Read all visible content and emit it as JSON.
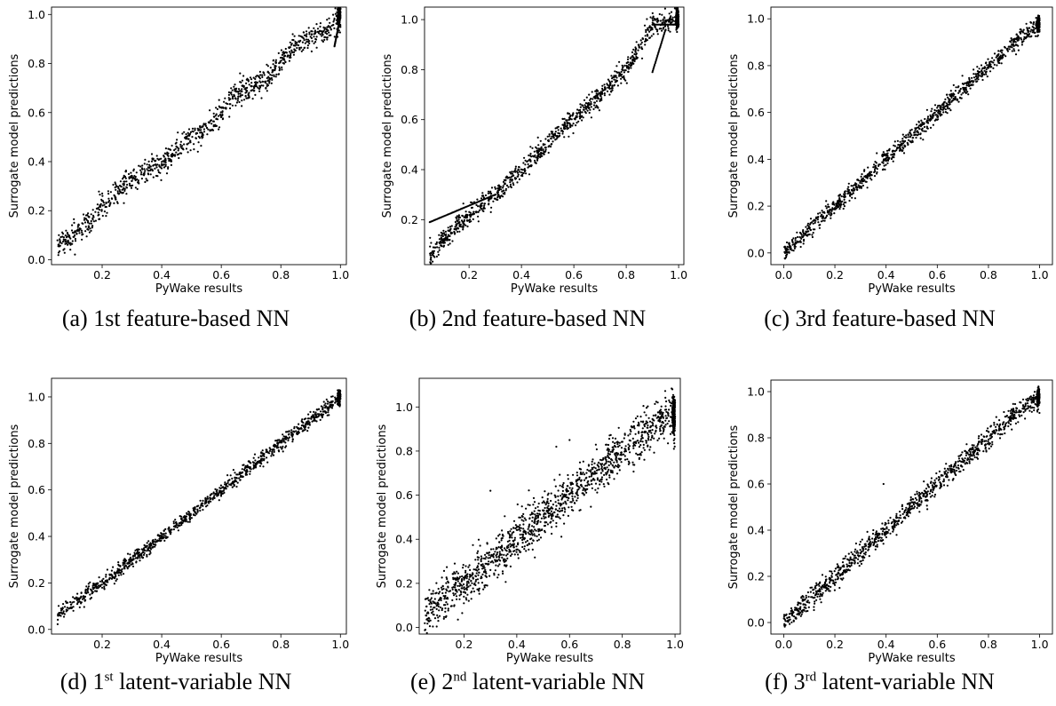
{
  "chart_data": [
    {
      "type": "scatter",
      "caption": {
        "prefix": "(a) 1st feature-based NN",
        "sup": "",
        "suffix": ""
      },
      "xlabel": "PyWake results",
      "ylabel": "Surrogate model predictions",
      "xlim": [
        0.03,
        1.02
      ],
      "ylim": [
        -0.02,
        1.03
      ],
      "xticks": [
        0.2,
        0.4,
        0.6,
        0.8,
        1.0
      ],
      "yticks": [
        0.0,
        0.2,
        0.4,
        0.6,
        0.8,
        1.0
      ],
      "approx_points": [
        [
          0.05,
          0.06
        ],
        [
          0.1,
          0.1
        ],
        [
          0.15,
          0.15
        ],
        [
          0.2,
          0.22
        ],
        [
          0.3,
          0.33
        ],
        [
          0.4,
          0.4
        ],
        [
          0.5,
          0.5
        ],
        [
          0.55,
          0.53
        ],
        [
          0.65,
          0.68
        ],
        [
          0.75,
          0.73
        ],
        [
          0.85,
          0.88
        ],
        [
          0.95,
          0.93
        ],
        [
          1.0,
          1.0
        ]
      ],
      "series": [
        {
          "values": "dense scatter along y = x with clustered streaks; noise ±0.05; tail 0.87–1.0 at x≈1.0"
        }
      ]
    },
    {
      "type": "scatter",
      "caption": {
        "prefix": "(b) 2nd feature-based NN",
        "sup": "",
        "suffix": ""
      },
      "xlabel": "PyWake results",
      "ylabel": "Surrogate model predictions",
      "xlim": [
        0.03,
        1.02
      ],
      "ylim": [
        0.02,
        1.05
      ],
      "xticks": [
        0.2,
        0.4,
        0.6,
        0.8,
        1.0
      ],
      "yticks": [
        0.2,
        0.4,
        0.6,
        0.8,
        1.0
      ],
      "approx_points": [
        [
          0.05,
          0.05
        ],
        [
          0.1,
          0.12
        ],
        [
          0.2,
          0.22
        ],
        [
          0.3,
          0.3
        ],
        [
          0.4,
          0.4
        ],
        [
          0.5,
          0.5
        ],
        [
          0.55,
          0.57
        ],
        [
          0.6,
          0.6
        ],
        [
          0.7,
          0.7
        ],
        [
          0.8,
          0.8
        ],
        [
          0.9,
          0.98
        ],
        [
          1.0,
          1.0
        ]
      ],
      "series": [
        {
          "values": "scatter along y = x with step plateaus; branch from (0.05,0.19) to (0.3,0.3); lower branch 0.8–0.9 near x≈0.92"
        }
      ]
    },
    {
      "type": "scatter",
      "caption": {
        "prefix": "(c) 3rd feature-based NN",
        "sup": "",
        "suffix": ""
      },
      "xlabel": "PyWake results",
      "ylabel": "Surrogate model predictions",
      "xlim": [
        -0.05,
        1.05
      ],
      "ylim": [
        -0.05,
        1.05
      ],
      "xticks": [
        0.0,
        0.2,
        0.4,
        0.6,
        0.8,
        1.0
      ],
      "yticks": [
        0.0,
        0.2,
        0.4,
        0.6,
        0.8,
        1.0
      ],
      "approx_points": [
        [
          0.0,
          0.0
        ],
        [
          0.1,
          0.1
        ],
        [
          0.2,
          0.2
        ],
        [
          0.3,
          0.3
        ],
        [
          0.4,
          0.4
        ],
        [
          0.5,
          0.5
        ],
        [
          0.6,
          0.6
        ],
        [
          0.7,
          0.7
        ],
        [
          0.8,
          0.8
        ],
        [
          0.9,
          0.9
        ],
        [
          1.0,
          0.98
        ]
      ],
      "series": [
        {
          "values": "tight scatter along y = x; noise ±0.03"
        }
      ]
    },
    {
      "type": "scatter",
      "caption": {
        "prefix": "(d) 1",
        "sup": "st",
        "suffix": " latent-variable NN"
      },
      "xlabel": "PyWake results",
      "ylabel": "Surrogate model predictions",
      "xlim": [
        0.03,
        1.02
      ],
      "ylim": [
        -0.02,
        1.08
      ],
      "xticks": [
        0.2,
        0.4,
        0.6,
        0.8,
        1.0
      ],
      "yticks": [
        0.0,
        0.2,
        0.4,
        0.6,
        0.8,
        1.0
      ],
      "approx_points": [
        [
          0.05,
          0.06
        ],
        [
          0.1,
          0.11
        ],
        [
          0.2,
          0.2
        ],
        [
          0.3,
          0.3
        ],
        [
          0.4,
          0.4
        ],
        [
          0.5,
          0.5
        ],
        [
          0.6,
          0.6
        ],
        [
          0.7,
          0.7
        ],
        [
          0.8,
          0.8
        ],
        [
          0.9,
          0.9
        ],
        [
          1.0,
          1.0
        ]
      ],
      "series": [
        {
          "values": "tight scatter along y = x; noise ±0.03"
        }
      ]
    },
    {
      "type": "scatter",
      "caption": {
        "prefix": "(e) 2",
        "sup": "nd",
        "suffix": " latent-variable NN"
      },
      "xlabel": "PyWake results",
      "ylabel": "Surrogate model predictions",
      "xlim": [
        0.03,
        1.02
      ],
      "ylim": [
        -0.03,
        1.13
      ],
      "xticks": [
        0.2,
        0.4,
        0.6,
        0.8,
        1.0
      ],
      "yticks": [
        0.0,
        0.2,
        0.4,
        0.6,
        0.8,
        1.0
      ],
      "approx_points": [
        [
          0.05,
          0.07
        ],
        [
          0.1,
          0.12
        ],
        [
          0.2,
          0.2
        ],
        [
          0.3,
          0.3
        ],
        [
          0.4,
          0.4
        ],
        [
          0.5,
          0.5
        ],
        [
          0.6,
          0.6
        ],
        [
          0.7,
          0.7
        ],
        [
          0.8,
          0.8
        ],
        [
          0.9,
          0.9
        ],
        [
          1.0,
          0.97
        ]
      ],
      "series": [
        {
          "values": "broad scatter along y = x; noise ±0.1; max ≈1.08"
        }
      ]
    },
    {
      "type": "scatter",
      "caption": {
        "prefix": "(f) 3",
        "sup": "rd",
        "suffix": " latent-variable NN"
      },
      "xlabel": "PyWake results",
      "ylabel": "Surrogate model predictions",
      "xlim": [
        -0.05,
        1.05
      ],
      "ylim": [
        -0.05,
        1.05
      ],
      "xticks": [
        0.0,
        0.2,
        0.4,
        0.6,
        0.8,
        1.0
      ],
      "yticks": [
        0.0,
        0.2,
        0.4,
        0.6,
        0.8,
        1.0
      ],
      "approx_points": [
        [
          0.0,
          0.0
        ],
        [
          0.1,
          0.1
        ],
        [
          0.2,
          0.2
        ],
        [
          0.3,
          0.3
        ],
        [
          0.4,
          0.4
        ],
        [
          0.5,
          0.5
        ],
        [
          0.6,
          0.6
        ],
        [
          0.7,
          0.7
        ],
        [
          0.8,
          0.8
        ],
        [
          0.9,
          0.9
        ],
        [
          1.0,
          0.98
        ]
      ],
      "series": [
        {
          "values": "scatter along y = x; noise ±0.04; outliers to 0.35 at x≈0.35 and 0.6 at x≈0.39"
        }
      ]
    }
  ]
}
